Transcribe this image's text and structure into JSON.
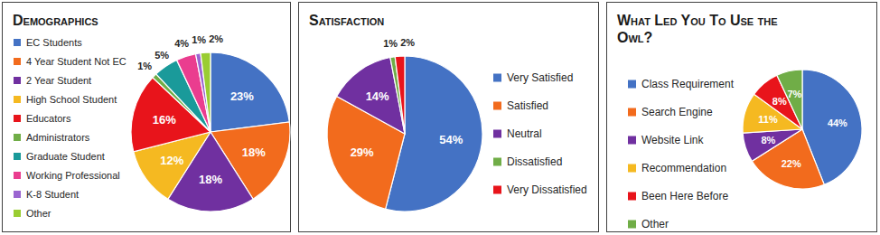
{
  "chart_data": [
    {
      "type": "pie",
      "title": "Demographics",
      "categories": [
        "EC Students",
        "4 Year Student Not EC",
        "2 Year Student",
        "High School Student",
        "Educators",
        "Administrators",
        "Graduate Student",
        "Working Professional",
        "K-8 Student",
        "Other"
      ],
      "values": [
        23,
        18,
        18,
        12,
        16,
        1,
        5,
        4,
        1,
        2
      ],
      "value_labels": [
        "23%",
        "18%",
        "18%",
        "12%",
        "16%",
        "1%",
        "5%",
        "4%",
        "1%",
        "2%"
      ],
      "colors": [
        "#4472c4",
        "#f26b1d",
        "#7030a0",
        "#f5b921",
        "#e8141b",
        "#70ad47",
        "#1a9a9a",
        "#ea3d8f",
        "#9b66d1",
        "#9acd32"
      ],
      "data_labels": true
    },
    {
      "type": "pie",
      "title": "Satisfaction",
      "categories": [
        "Very Satisfied",
        "Satisfied",
        "Neutral",
        "Dissatisfied",
        "Very Dissatisfied"
      ],
      "values": [
        54,
        29,
        14,
        1,
        2
      ],
      "value_labels": [
        "54%",
        "29%",
        "14%",
        "1%",
        "2%"
      ],
      "colors": [
        "#4472c4",
        "#f26b1d",
        "#7030a0",
        "#70ad47",
        "#e8141b"
      ],
      "data_labels": true
    },
    {
      "type": "pie",
      "title": "What Led You To Use the Owl?",
      "categories": [
        "Class Requirement",
        "Search Engine",
        "Website Link",
        "Recommendation",
        "Been Here Before",
        "Other"
      ],
      "values": [
        44,
        22,
        8,
        11,
        8,
        7
      ],
      "value_labels": [
        "44%",
        "22%",
        "8%",
        "11%",
        "8%",
        "7%"
      ],
      "colors": [
        "#4472c4",
        "#f26b1d",
        "#7030a0",
        "#f5b921",
        "#e8141b",
        "#70ad47"
      ],
      "data_labels": true
    }
  ]
}
